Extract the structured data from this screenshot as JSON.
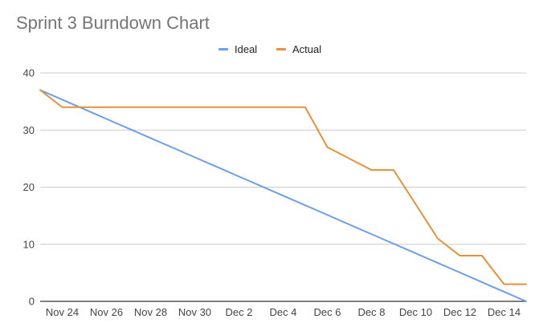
{
  "chart_data": {
    "type": "line",
    "title": "Sprint 3 Burndown Chart",
    "xlabel": "",
    "ylabel": "",
    "ylim": [
      0,
      40
    ],
    "yticks": [
      0,
      10,
      20,
      30,
      40
    ],
    "grid": true,
    "legend_placement": "top-center",
    "x": [
      "Nov 23",
      "Nov 24",
      "Nov 25",
      "Nov 26",
      "Nov 27",
      "Nov 28",
      "Nov 29",
      "Nov 30",
      "Dec 1",
      "Dec 2",
      "Dec 3",
      "Dec 4",
      "Dec 5",
      "Dec 6",
      "Dec 7",
      "Dec 8",
      "Dec 9",
      "Dec 10",
      "Dec 11",
      "Dec 12",
      "Dec 13",
      "Dec 14",
      "Dec 15"
    ],
    "xtick_labels": [
      "Nov 24",
      "Nov 26",
      "Nov 28",
      "Nov 30",
      "Dec 2",
      "Dec 4",
      "Dec 6",
      "Dec 8",
      "Dec 10",
      "Dec 12",
      "Dec 14"
    ],
    "series": [
      {
        "name": "Ideal",
        "color": "#6d9eeb",
        "values": [
          37,
          35.32,
          33.64,
          31.95,
          30.27,
          28.59,
          26.91,
          25.23,
          23.55,
          21.86,
          20.18,
          18.5,
          16.82,
          15.14,
          13.45,
          11.77,
          10.09,
          8.41,
          6.73,
          5.05,
          3.36,
          1.68,
          0
        ]
      },
      {
        "name": "Actual",
        "color": "#e69138",
        "values": [
          37,
          34,
          34,
          34,
          34,
          34,
          34,
          34,
          34,
          34,
          34,
          34,
          34,
          27,
          25,
          23,
          23,
          17,
          11,
          8,
          8,
          3,
          3
        ]
      }
    ]
  }
}
